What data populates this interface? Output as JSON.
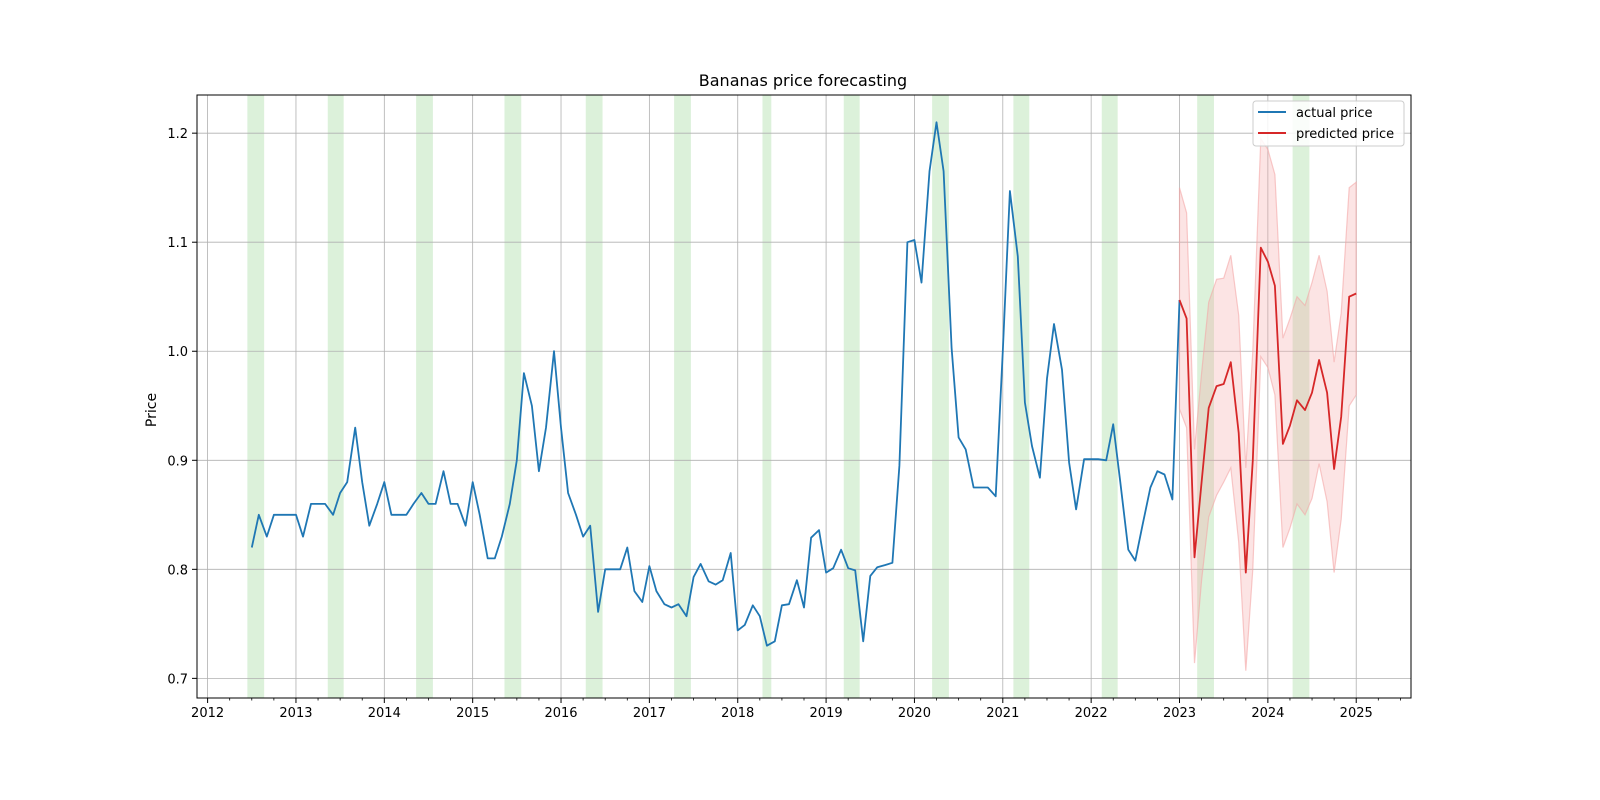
{
  "chart_data": {
    "type": "line",
    "title": "Bananas price forecasting",
    "xlabel": "",
    "ylabel": "Price",
    "xlim": [
      2011.88,
      2025.62
    ],
    "ylim": [
      0.682,
      1.235
    ],
    "x_ticks": [
      "2012",
      "2013",
      "2014",
      "2015",
      "2016",
      "2017",
      "2018",
      "2019",
      "2020",
      "2021",
      "2022",
      "2023",
      "2024",
      "2025"
    ],
    "y_ticks": [
      "0.7",
      "0.8",
      "0.9",
      "1.0",
      "1.1",
      "1.2"
    ],
    "grid": true,
    "legend": {
      "placement": "top-right",
      "entries": [
        "actual price",
        "predicted price"
      ]
    },
    "colors": {
      "actual": "#1f77b4",
      "predicted": "#d62728",
      "band": "#f4a6a6",
      "shade": "#a8dca3"
    },
    "shaded_periods": [
      [
        2012.45,
        2012.64
      ],
      [
        2013.36,
        2013.54
      ],
      [
        2014.36,
        2014.55
      ],
      [
        2015.36,
        2015.55
      ],
      [
        2016.28,
        2016.47
      ],
      [
        2017.28,
        2017.47
      ],
      [
        2018.28,
        2018.38
      ],
      [
        2019.2,
        2019.38
      ],
      [
        2020.2,
        2020.39
      ],
      [
        2021.12,
        2021.3
      ],
      [
        2022.12,
        2022.3
      ],
      [
        2023.2,
        2023.39
      ],
      [
        2024.28,
        2024.47
      ]
    ],
    "series": [
      {
        "name": "actual price",
        "x": [
          2012.5,
          2012.58,
          2012.67,
          2012.75,
          2012.83,
          2012.92,
          2013.0,
          2013.08,
          2013.17,
          2013.25,
          2013.33,
          2013.42,
          2013.5,
          2013.58,
          2013.67,
          2013.75,
          2013.83,
          2013.92,
          2014.0,
          2014.08,
          2014.17,
          2014.25,
          2014.33,
          2014.42,
          2014.5,
          2014.58,
          2014.67,
          2014.75,
          2014.83,
          2014.92,
          2015.0,
          2015.08,
          2015.17,
          2015.25,
          2015.33,
          2015.42,
          2015.5,
          2015.58,
          2015.67,
          2015.75,
          2015.83,
          2015.92,
          2016.0,
          2016.08,
          2016.17,
          2016.25,
          2016.33,
          2016.42,
          2016.5,
          2016.58,
          2016.67,
          2016.75,
          2016.83,
          2016.92,
          2017.0,
          2017.08,
          2017.17,
          2017.25,
          2017.33,
          2017.42,
          2017.5,
          2017.58,
          2017.67,
          2017.75,
          2017.83,
          2017.92,
          2018.0,
          2018.08,
          2018.17,
          2018.25,
          2018.33,
          2018.42,
          2018.5,
          2018.58,
          2018.67,
          2018.75,
          2018.83,
          2018.92,
          2019.0,
          2019.08,
          2019.17,
          2019.25,
          2019.33,
          2019.42,
          2019.5,
          2019.58,
          2019.67,
          2019.75,
          2019.83,
          2019.92,
          2020.0,
          2020.08,
          2020.17,
          2020.25,
          2020.33,
          2020.42,
          2020.5,
          2020.58,
          2020.67,
          2020.75,
          2020.83,
          2020.92,
          2021.0,
          2021.08,
          2021.17,
          2021.25,
          2021.33,
          2021.42,
          2021.5,
          2021.58,
          2021.67,
          2021.75,
          2021.83,
          2021.92,
          2022.0,
          2022.08,
          2022.17,
          2022.25,
          2022.33,
          2022.42,
          2022.5,
          2022.58,
          2022.67,
          2022.75,
          2022.83,
          2022.92,
          2023.0
        ],
        "y": [
          0.82,
          0.85,
          0.83,
          0.85,
          0.85,
          0.85,
          0.85,
          0.83,
          0.86,
          0.86,
          0.86,
          0.85,
          0.87,
          0.88,
          0.93,
          0.88,
          0.84,
          0.86,
          0.88,
          0.85,
          0.85,
          0.85,
          0.86,
          0.87,
          0.86,
          0.86,
          0.89,
          0.86,
          0.86,
          0.84,
          0.88,
          0.85,
          0.81,
          0.81,
          0.83,
          0.86,
          0.9,
          0.98,
          0.95,
          0.89,
          0.93,
          1.0,
          0.93,
          0.87,
          0.85,
          0.83,
          0.84,
          0.761,
          0.8,
          0.8,
          0.8,
          0.82,
          0.78,
          0.77,
          0.803,
          0.78,
          0.768,
          0.765,
          0.768,
          0.757,
          0.793,
          0.805,
          0.789,
          0.786,
          0.79,
          0.815,
          0.744,
          0.749,
          0.767,
          0.757,
          0.73,
          0.734,
          0.767,
          0.768,
          0.79,
          0.765,
          0.829,
          0.836,
          0.797,
          0.801,
          0.818,
          0.801,
          0.799,
          0.734,
          0.794,
          0.802,
          0.804,
          0.806,
          0.895,
          1.1,
          1.102,
          1.063,
          1.165,
          1.21,
          1.165,
          1.003,
          0.921,
          0.91,
          0.875,
          0.875,
          0.875,
          0.867,
          1.0,
          1.147,
          1.087,
          0.953,
          0.913,
          0.884,
          0.975,
          1.025,
          0.983,
          0.898,
          0.855,
          0.901,
          0.901,
          0.901,
          0.9,
          0.933,
          0.88,
          0.818,
          0.808,
          0.84,
          0.875,
          0.89,
          0.887,
          0.864,
          1.047
        ]
      },
      {
        "name": "predicted price",
        "x": [
          2023.0,
          2023.08,
          2023.17,
          2023.25,
          2023.33,
          2023.42,
          2023.5,
          2023.58,
          2023.67,
          2023.75,
          2023.83,
          2023.92,
          2024.0,
          2024.08,
          2024.17,
          2024.25,
          2024.33,
          2024.42,
          2024.5,
          2024.58,
          2024.67,
          2024.75,
          2024.83,
          2024.92,
          2025.0
        ],
        "y": [
          1.047,
          1.03,
          0.811,
          0.88,
          0.948,
          0.968,
          0.97,
          0.99,
          0.925,
          0.797,
          0.9,
          1.095,
          1.082,
          1.06,
          0.915,
          0.932,
          0.955,
          0.946,
          0.962,
          0.992,
          0.962,
          0.892,
          0.94,
          1.05,
          1.053
        ],
        "lower": [
          0.947,
          0.93,
          0.714,
          0.79,
          0.848,
          0.868,
          0.88,
          0.893,
          0.825,
          0.707,
          0.8,
          0.995,
          0.985,
          0.96,
          0.82,
          0.838,
          0.86,
          0.85,
          0.865,
          0.897,
          0.862,
          0.797,
          0.846,
          0.95,
          0.96
        ],
        "upper": [
          1.15,
          1.127,
          0.91,
          0.98,
          1.045,
          1.066,
          1.067,
          1.088,
          1.033,
          0.893,
          1.0,
          1.195,
          1.185,
          1.162,
          1.012,
          1.03,
          1.05,
          1.042,
          1.063,
          1.088,
          1.055,
          0.99,
          1.035,
          1.15,
          1.155
        ]
      }
    ]
  }
}
